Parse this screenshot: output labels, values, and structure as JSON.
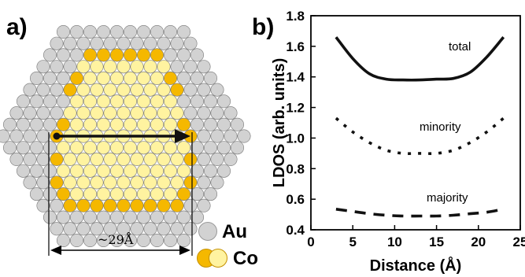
{
  "panels": {
    "a": {
      "label": "a)",
      "dimension": "~29Å",
      "legend": [
        {
          "text": "Au",
          "colors": [
            "#d2d2d2"
          ]
        },
        {
          "text": "Co",
          "colors": [
            "#f5b800",
            "#fff3a0"
          ]
        }
      ],
      "colors": {
        "au": "#d2d2d2",
        "co_edge": "#f5b800",
        "co_inner": "#fff3a0",
        "outline": "#777777"
      }
    },
    "b": {
      "label": "b)"
    }
  },
  "chart_data": {
    "type": "line",
    "xlabel": "Distance  (Å)",
    "ylabel": "LDOS  (arb. units)",
    "xlim": [
      0,
      25
    ],
    "ylim": [
      0.4,
      1.8
    ],
    "xticks": [
      0,
      5,
      10,
      15,
      20,
      25
    ],
    "yticks": [
      0.4,
      0.6,
      0.8,
      1.0,
      1.2,
      1.4,
      1.6,
      1.8
    ],
    "series": [
      {
        "name": "total",
        "style": "solid",
        "x": [
          3,
          5,
          7,
          9,
          11,
          13,
          15,
          17,
          19,
          21,
          23
        ],
        "y": [
          1.66,
          1.52,
          1.42,
          1.385,
          1.38,
          1.38,
          1.385,
          1.39,
          1.43,
          1.53,
          1.66
        ]
      },
      {
        "name": "minority",
        "style": "dotted",
        "x": [
          3,
          5,
          7,
          9,
          11,
          13,
          15,
          17,
          19,
          21,
          23
        ],
        "y": [
          1.13,
          1.04,
          0.97,
          0.92,
          0.9,
          0.9,
          0.9,
          0.92,
          0.97,
          1.04,
          1.13
        ]
      },
      {
        "name": "majority",
        "style": "dashed",
        "x": [
          3,
          5,
          7,
          9,
          11,
          13,
          15,
          17,
          19,
          21,
          23
        ],
        "y": [
          0.535,
          0.52,
          0.505,
          0.495,
          0.49,
          0.49,
          0.49,
          0.495,
          0.505,
          0.515,
          0.535
        ]
      }
    ]
  }
}
